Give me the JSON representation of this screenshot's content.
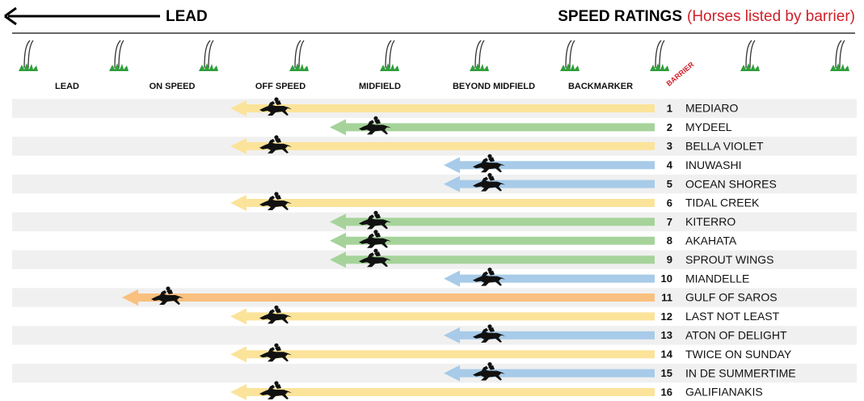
{
  "header": {
    "lead_label": "LEAD",
    "title": "SPEED RATINGS",
    "subtitle": "(Horses listed by barrier)"
  },
  "columns": [
    "LEAD",
    "ON SPEED",
    "OFF SPEED",
    "MIDFIELD",
    "BEYOND MIDFIELD",
    "BACKMARKER"
  ],
  "barrier_label": "BARRIER",
  "rows": [
    {
      "barrier": 1,
      "name": "MEDIARO",
      "position": "OFF SPEED"
    },
    {
      "barrier": 2,
      "name": "MYDEEL",
      "position": "MIDFIELD"
    },
    {
      "barrier": 3,
      "name": "BELLA VIOLET",
      "position": "OFF SPEED"
    },
    {
      "barrier": 4,
      "name": "INUWASHI",
      "position": "BEYOND MIDFIELD"
    },
    {
      "barrier": 5,
      "name": "OCEAN SHORES",
      "position": "BEYOND MIDFIELD"
    },
    {
      "barrier": 6,
      "name": "TIDAL CREEK",
      "position": "OFF SPEED"
    },
    {
      "barrier": 7,
      "name": "KITERRO",
      "position": "MIDFIELD"
    },
    {
      "barrier": 8,
      "name": "AKAHATA",
      "position": "MIDFIELD"
    },
    {
      "barrier": 9,
      "name": "SPROUT WINGS",
      "position": "MIDFIELD"
    },
    {
      "barrier": 10,
      "name": "MIANDELLE",
      "position": "BEYOND MIDFIELD"
    },
    {
      "barrier": 11,
      "name": "GULF OF SAROS",
      "position": "ON SPEED"
    },
    {
      "barrier": 12,
      "name": "LAST NOT LEAST",
      "position": "OFF SPEED"
    },
    {
      "barrier": 13,
      "name": "ATON OF DELIGHT",
      "position": "BEYOND MIDFIELD"
    },
    {
      "barrier": 14,
      "name": "TWICE ON SUNDAY",
      "position": "OFF SPEED"
    },
    {
      "barrier": 15,
      "name": "IN DE SUMMERTIME",
      "position": "BEYOND MIDFIELD"
    },
    {
      "barrier": 16,
      "name": "GALIFIANAKIS",
      "position": "OFF SPEED"
    }
  ]
}
